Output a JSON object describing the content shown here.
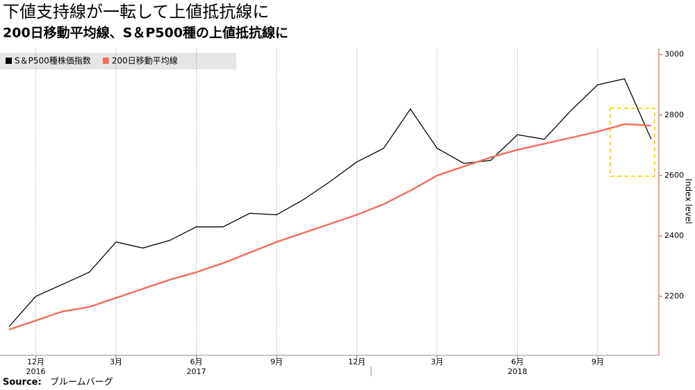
{
  "chart_data": {
    "type": "line",
    "title": "下値支持線が一転して上値抵抗線に",
    "subtitle": "200日移動平均線、S＆P500種の上値抵抗線に",
    "y_label": "Index level",
    "source_label": "Source:",
    "source": "ブルームバーグ",
    "x": [
      "2016-11",
      "2016-12",
      "2017-01",
      "2017-02",
      "2017-03",
      "2017-04",
      "2017-05",
      "2017-06",
      "2017-07",
      "2017-08",
      "2017-09",
      "2017-10",
      "2017-11",
      "2017-12",
      "2018-01",
      "2018-02",
      "2018-03",
      "2018-04",
      "2018-05",
      "2018-06",
      "2018-07",
      "2018-08",
      "2018-09",
      "2018-10",
      "2018-11"
    ],
    "series": [
      {
        "name": "S＆P500種株価指数",
        "color": "#000000",
        "values": [
          2100,
          2200,
          2240,
          2280,
          2380,
          2360,
          2385,
          2430,
          2430,
          2475,
          2470,
          2520,
          2580,
          2645,
          2690,
          2820,
          2690,
          2640,
          2650,
          2735,
          2720,
          2815,
          2900,
          2920,
          2720
        ]
      },
      {
        "name": "200日移動平均線",
        "color": "#f07060",
        "values": [
          2090,
          2120,
          2150,
          2165,
          2195,
          2225,
          2255,
          2280,
          2310,
          2345,
          2380,
          2410,
          2440,
          2470,
          2505,
          2550,
          2600,
          2630,
          2660,
          2685,
          2705,
          2725,
          2745,
          2770,
          2765
        ]
      }
    ],
    "xticks": [
      {
        "value": "2016-12",
        "label": "12月"
      },
      {
        "value": "2017-03",
        "label": "3月"
      },
      {
        "value": "2017-06",
        "label": "6月"
      },
      {
        "value": "2017-09",
        "label": "9月"
      },
      {
        "value": "2017-12",
        "label": "12月"
      },
      {
        "value": "2018-03",
        "label": "3月"
      },
      {
        "value": "2018-06",
        "label": "6月"
      },
      {
        "value": "2018-09",
        "label": "9月"
      }
    ],
    "year_labels": [
      {
        "value": "2016-12",
        "label": "2016"
      },
      {
        "value": "2017-06",
        "label": "2017"
      },
      {
        "value": "2018-06",
        "label": "2018"
      }
    ],
    "ylim": [
      2005,
      3020
    ],
    "yticks": [
      2200,
      2400,
      2600,
      2800,
      3000
    ],
    "axis_color": "#e04040",
    "grid": true
  }
}
